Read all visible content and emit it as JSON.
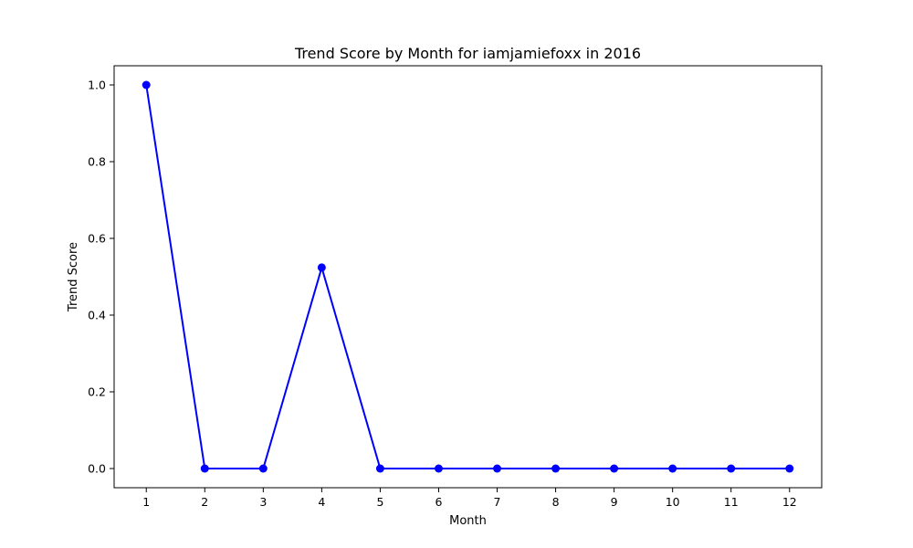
{
  "chart_data": {
    "type": "line",
    "title": "Trend Score by Month for iamjamiefoxx in 2016",
    "xlabel": "Month",
    "ylabel": "Trend Score",
    "x": [
      1,
      2,
      3,
      4,
      5,
      6,
      7,
      8,
      9,
      10,
      11,
      12
    ],
    "x_tick_labels": [
      "1",
      "2",
      "3",
      "4",
      "5",
      "6",
      "7",
      "8",
      "9",
      "10",
      "11",
      "12"
    ],
    "y_ticks": [
      0.0,
      0.2,
      0.4,
      0.6,
      0.8,
      1.0
    ],
    "y_tick_labels": [
      "0.0",
      "0.2",
      "0.4",
      "0.6",
      "0.8",
      "1.0"
    ],
    "series": [
      {
        "values": [
          1.0,
          0.0,
          0.0,
          0.524,
          0.0,
          0.0,
          0.0,
          0.0,
          0.0,
          0.0,
          0.0,
          0.0
        ],
        "color": "#0000ff",
        "marker": "circle"
      }
    ],
    "xlim": [
      0.45,
      12.55
    ],
    "ylim": [
      -0.05,
      1.05
    ],
    "grid": false,
    "legend": "none"
  }
}
